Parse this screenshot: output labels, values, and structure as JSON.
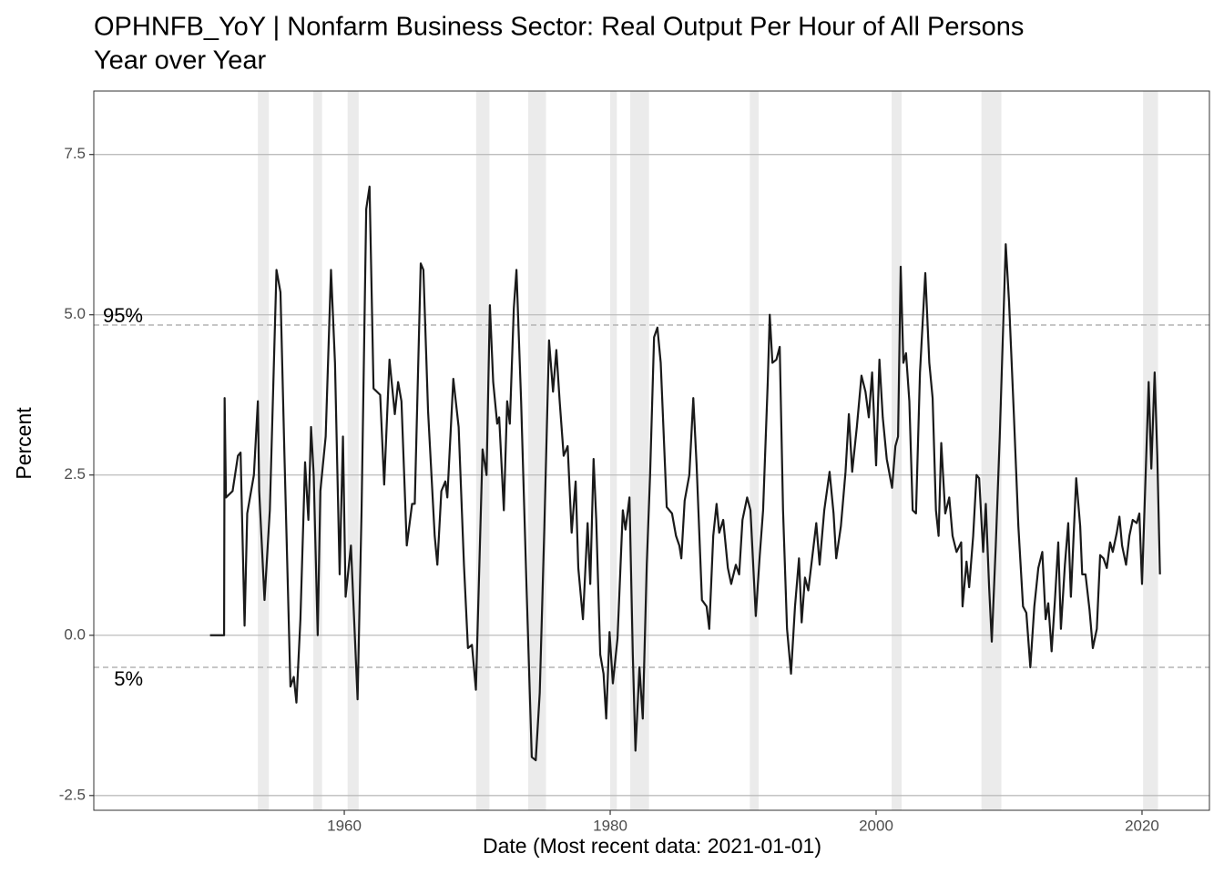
{
  "chart_data": {
    "type": "line",
    "title": "OPHNFB_YoY | Nonfarm Business Sector: Real Output Per Hour of All Persons",
    "subtitle": "Year over Year",
    "x_label": "Date (Most recent data: 2021-01-01)",
    "y_label": "Percent",
    "color": "#1a1a1a",
    "x": [
      1949.9,
      1950.96,
      1951.0,
      1951.1,
      1951.6,
      1952.0,
      1952.2,
      1952.5,
      1952.7,
      1953.2,
      1953.5,
      1953.6,
      1954.0,
      1954.4,
      1954.9,
      1955.2,
      1955.5,
      1955.95,
      1956.2,
      1956.4,
      1956.7,
      1957.05,
      1957.3,
      1957.5,
      1957.7,
      1958.0,
      1958.2,
      1958.6,
      1959.0,
      1959.3,
      1959.65,
      1959.9,
      1960.1,
      1960.5,
      1961.0,
      1961.3,
      1961.65,
      1961.9,
      1962.2,
      1962.7,
      1963.0,
      1963.4,
      1963.8,
      1964.05,
      1964.3,
      1964.7,
      1965.1,
      1965.3,
      1965.75,
      1965.95,
      1966.3,
      1966.8,
      1967.0,
      1967.3,
      1967.6,
      1967.75,
      1968.2,
      1968.6,
      1969.0,
      1969.3,
      1969.6,
      1969.9,
      1970.4,
      1970.7,
      1970.95,
      1971.2,
      1971.5,
      1971.65,
      1972.0,
      1972.25,
      1972.45,
      1972.75,
      1972.95,
      1973.3,
      1973.7,
      1974.1,
      1974.4,
      1974.7,
      1975.05,
      1975.4,
      1975.7,
      1975.95,
      1976.2,
      1976.5,
      1976.8,
      1977.1,
      1977.4,
      1977.6,
      1977.95,
      1978.3,
      1978.5,
      1978.75,
      1978.95,
      1979.25,
      1979.5,
      1979.7,
      1979.95,
      1980.2,
      1980.55,
      1980.95,
      1981.15,
      1981.45,
      1981.7,
      1981.9,
      1982.2,
      1982.45,
      1982.75,
      1983.0,
      1983.3,
      1983.55,
      1983.8,
      1984.25,
      1984.65,
      1984.95,
      1985.2,
      1985.35,
      1985.6,
      1985.95,
      1986.25,
      1986.5,
      1986.9,
      1987.25,
      1987.45,
      1987.75,
      1988.0,
      1988.2,
      1988.5,
      1988.85,
      1989.1,
      1989.45,
      1989.7,
      1989.95,
      1990.3,
      1990.55,
      1990.95,
      1991.25,
      1991.5,
      1991.85,
      1992.0,
      1992.2,
      1992.5,
      1992.75,
      1993.0,
      1993.3,
      1993.6,
      1993.9,
      1994.2,
      1994.4,
      1994.65,
      1994.9,
      1995.3,
      1995.5,
      1995.75,
      1996.1,
      1996.5,
      1996.8,
      1997.0,
      1997.35,
      1997.7,
      1997.95,
      1998.2,
      1998.55,
      1998.9,
      1999.2,
      1999.45,
      1999.7,
      2000.0,
      2000.25,
      2000.5,
      2000.8,
      2001.2,
      2001.45,
      2001.65,
      2001.85,
      2002.05,
      2002.25,
      2002.5,
      2002.75,
      2003.0,
      2003.3,
      2003.7,
      2004.0,
      2004.25,
      2004.5,
      2004.7,
      2004.9,
      2005.2,
      2005.5,
      2005.75,
      2006.05,
      2006.4,
      2006.5,
      2006.8,
      2007.0,
      2007.3,
      2007.55,
      2007.75,
      2008.05,
      2008.25,
      2008.5,
      2008.7,
      2009.0,
      2009.3,
      2009.75,
      2010.0,
      2010.35,
      2010.7,
      2011.05,
      2011.3,
      2011.6,
      2011.9,
      2012.2,
      2012.5,
      2012.75,
      2012.95,
      2013.2,
      2013.45,
      2013.7,
      2013.9,
      2014.2,
      2014.45,
      2014.65,
      2015.05,
      2015.35,
      2015.5,
      2015.75,
      2016.05,
      2016.3,
      2016.6,
      2016.85,
      2017.1,
      2017.35,
      2017.6,
      2017.8,
      2018.1,
      2018.3,
      2018.5,
      2018.8,
      2019.05,
      2019.3,
      2019.6,
      2019.8,
      2020.0,
      2020.2,
      2020.5,
      2020.7,
      2020.95,
      2021.15,
      2021.35
    ],
    "values": [
      0,
      0,
      3.7,
      2.15,
      2.25,
      2.8,
      2.85,
      0.15,
      1.9,
      2.5,
      3.65,
      2.25,
      0.55,
      1.95,
      5.7,
      5.35,
      2.8,
      -0.8,
      -0.65,
      -1.05,
      0.25,
      2.7,
      1.8,
      3.25,
      2.5,
      0.0,
      2.25,
      3.1,
      5.7,
      4.25,
      0.95,
      3.1,
      0.6,
      1.4,
      -1.0,
      1.95,
      6.65,
      7.0,
      3.85,
      3.75,
      2.35,
      4.3,
      3.45,
      3.95,
      3.65,
      1.4,
      2.05,
      2.05,
      5.8,
      5.7,
      3.5,
      1.55,
      1.1,
      2.25,
      2.4,
      2.15,
      4.0,
      3.25,
      1.1,
      -0.2,
      -0.15,
      -0.85,
      2.9,
      2.5,
      5.15,
      3.95,
      3.3,
      3.4,
      1.95,
      3.65,
      3.3,
      5.1,
      5.7,
      3.65,
      0.8,
      -1.9,
      -1.95,
      -0.9,
      1.7,
      4.6,
      3.8,
      4.45,
      3.65,
      2.8,
      2.95,
      1.6,
      2.4,
      1.05,
      0.25,
      1.75,
      0.8,
      2.75,
      1.8,
      -0.3,
      -0.6,
      -1.3,
      0.05,
      -0.75,
      -0.05,
      1.95,
      1.65,
      2.15,
      -0.3,
      -1.8,
      -0.5,
      -1.3,
      1.1,
      2.5,
      4.65,
      4.8,
      4.25,
      2.0,
      1.9,
      1.55,
      1.4,
      1.2,
      2.1,
      2.5,
      3.7,
      2.65,
      0.55,
      0.45,
      0.1,
      1.55,
      2.05,
      1.6,
      1.8,
      1.05,
      0.8,
      1.1,
      0.95,
      1.8,
      2.15,
      1.95,
      0.3,
      1.25,
      1.95,
      3.95,
      5.0,
      4.25,
      4.3,
      4.5,
      1.95,
      0.1,
      -0.6,
      0.45,
      1.2,
      0.2,
      0.9,
      0.7,
      1.4,
      1.75,
      1.1,
      1.95,
      2.55,
      1.9,
      1.2,
      1.7,
      2.55,
      3.45,
      2.55,
      3.25,
      4.05,
      3.8,
      3.4,
      4.1,
      2.65,
      4.3,
      3.4,
      2.75,
      2.3,
      2.95,
      3.1,
      5.75,
      4.25,
      4.4,
      3.65,
      1.95,
      1.9,
      4.1,
      5.65,
      4.25,
      3.7,
      1.95,
      1.55,
      3.0,
      1.9,
      2.15,
      1.55,
      1.3,
      1.45,
      0.45,
      1.15,
      0.75,
      1.55,
      2.5,
      2.45,
      1.3,
      2.05,
      0.75,
      -0.1,
      1.4,
      3.1,
      6.1,
      5.2,
      3.5,
      1.7,
      0.45,
      0.35,
      -0.5,
      0.45,
      1.05,
      1.3,
      0.25,
      0.5,
      -0.25,
      0.55,
      1.45,
      0.1,
      1.1,
      1.75,
      0.6,
      2.45,
      1.7,
      0.95,
      0.95,
      0.4,
      -0.2,
      0.1,
      1.25,
      1.2,
      1.05,
      1.45,
      1.3,
      1.6,
      1.85,
      1.4,
      1.1,
      1.55,
      1.8,
      1.75,
      1.9,
      0.8,
      2.05,
      3.95,
      2.6,
      4.1,
      2.8,
      0.95
    ],
    "recessions": [
      [
        1953.5,
        1954.33
      ],
      [
        1957.67,
        1958.33
      ],
      [
        1960.25,
        1961.08
      ],
      [
        1969.92,
        1970.92
      ],
      [
        1973.83,
        1975.17
      ],
      [
        1980.0,
        1980.5
      ],
      [
        1981.5,
        1982.92
      ],
      [
        1990.5,
        1991.17
      ],
      [
        2001.17,
        2001.92
      ],
      [
        2007.92,
        2009.42
      ],
      [
        2020.08,
        2021.2
      ]
    ],
    "percentiles": [
      {
        "label": "95%",
        "value": 4.84
      },
      {
        "label": "5%",
        "value": -0.5
      }
    ],
    "xlim": [
      1941.16,
      2025.07
    ],
    "ylim": [
      -2.73,
      8.49
    ],
    "xticks": [
      1960,
      1980,
      2000,
      2020
    ],
    "yticks": [
      -2.5,
      {
        "value": 0,
        "label": "0.0"
      },
      2.5,
      {
        "value": 5,
        "label": "5.0"
      },
      7.5
    ],
    "grid": true
  }
}
